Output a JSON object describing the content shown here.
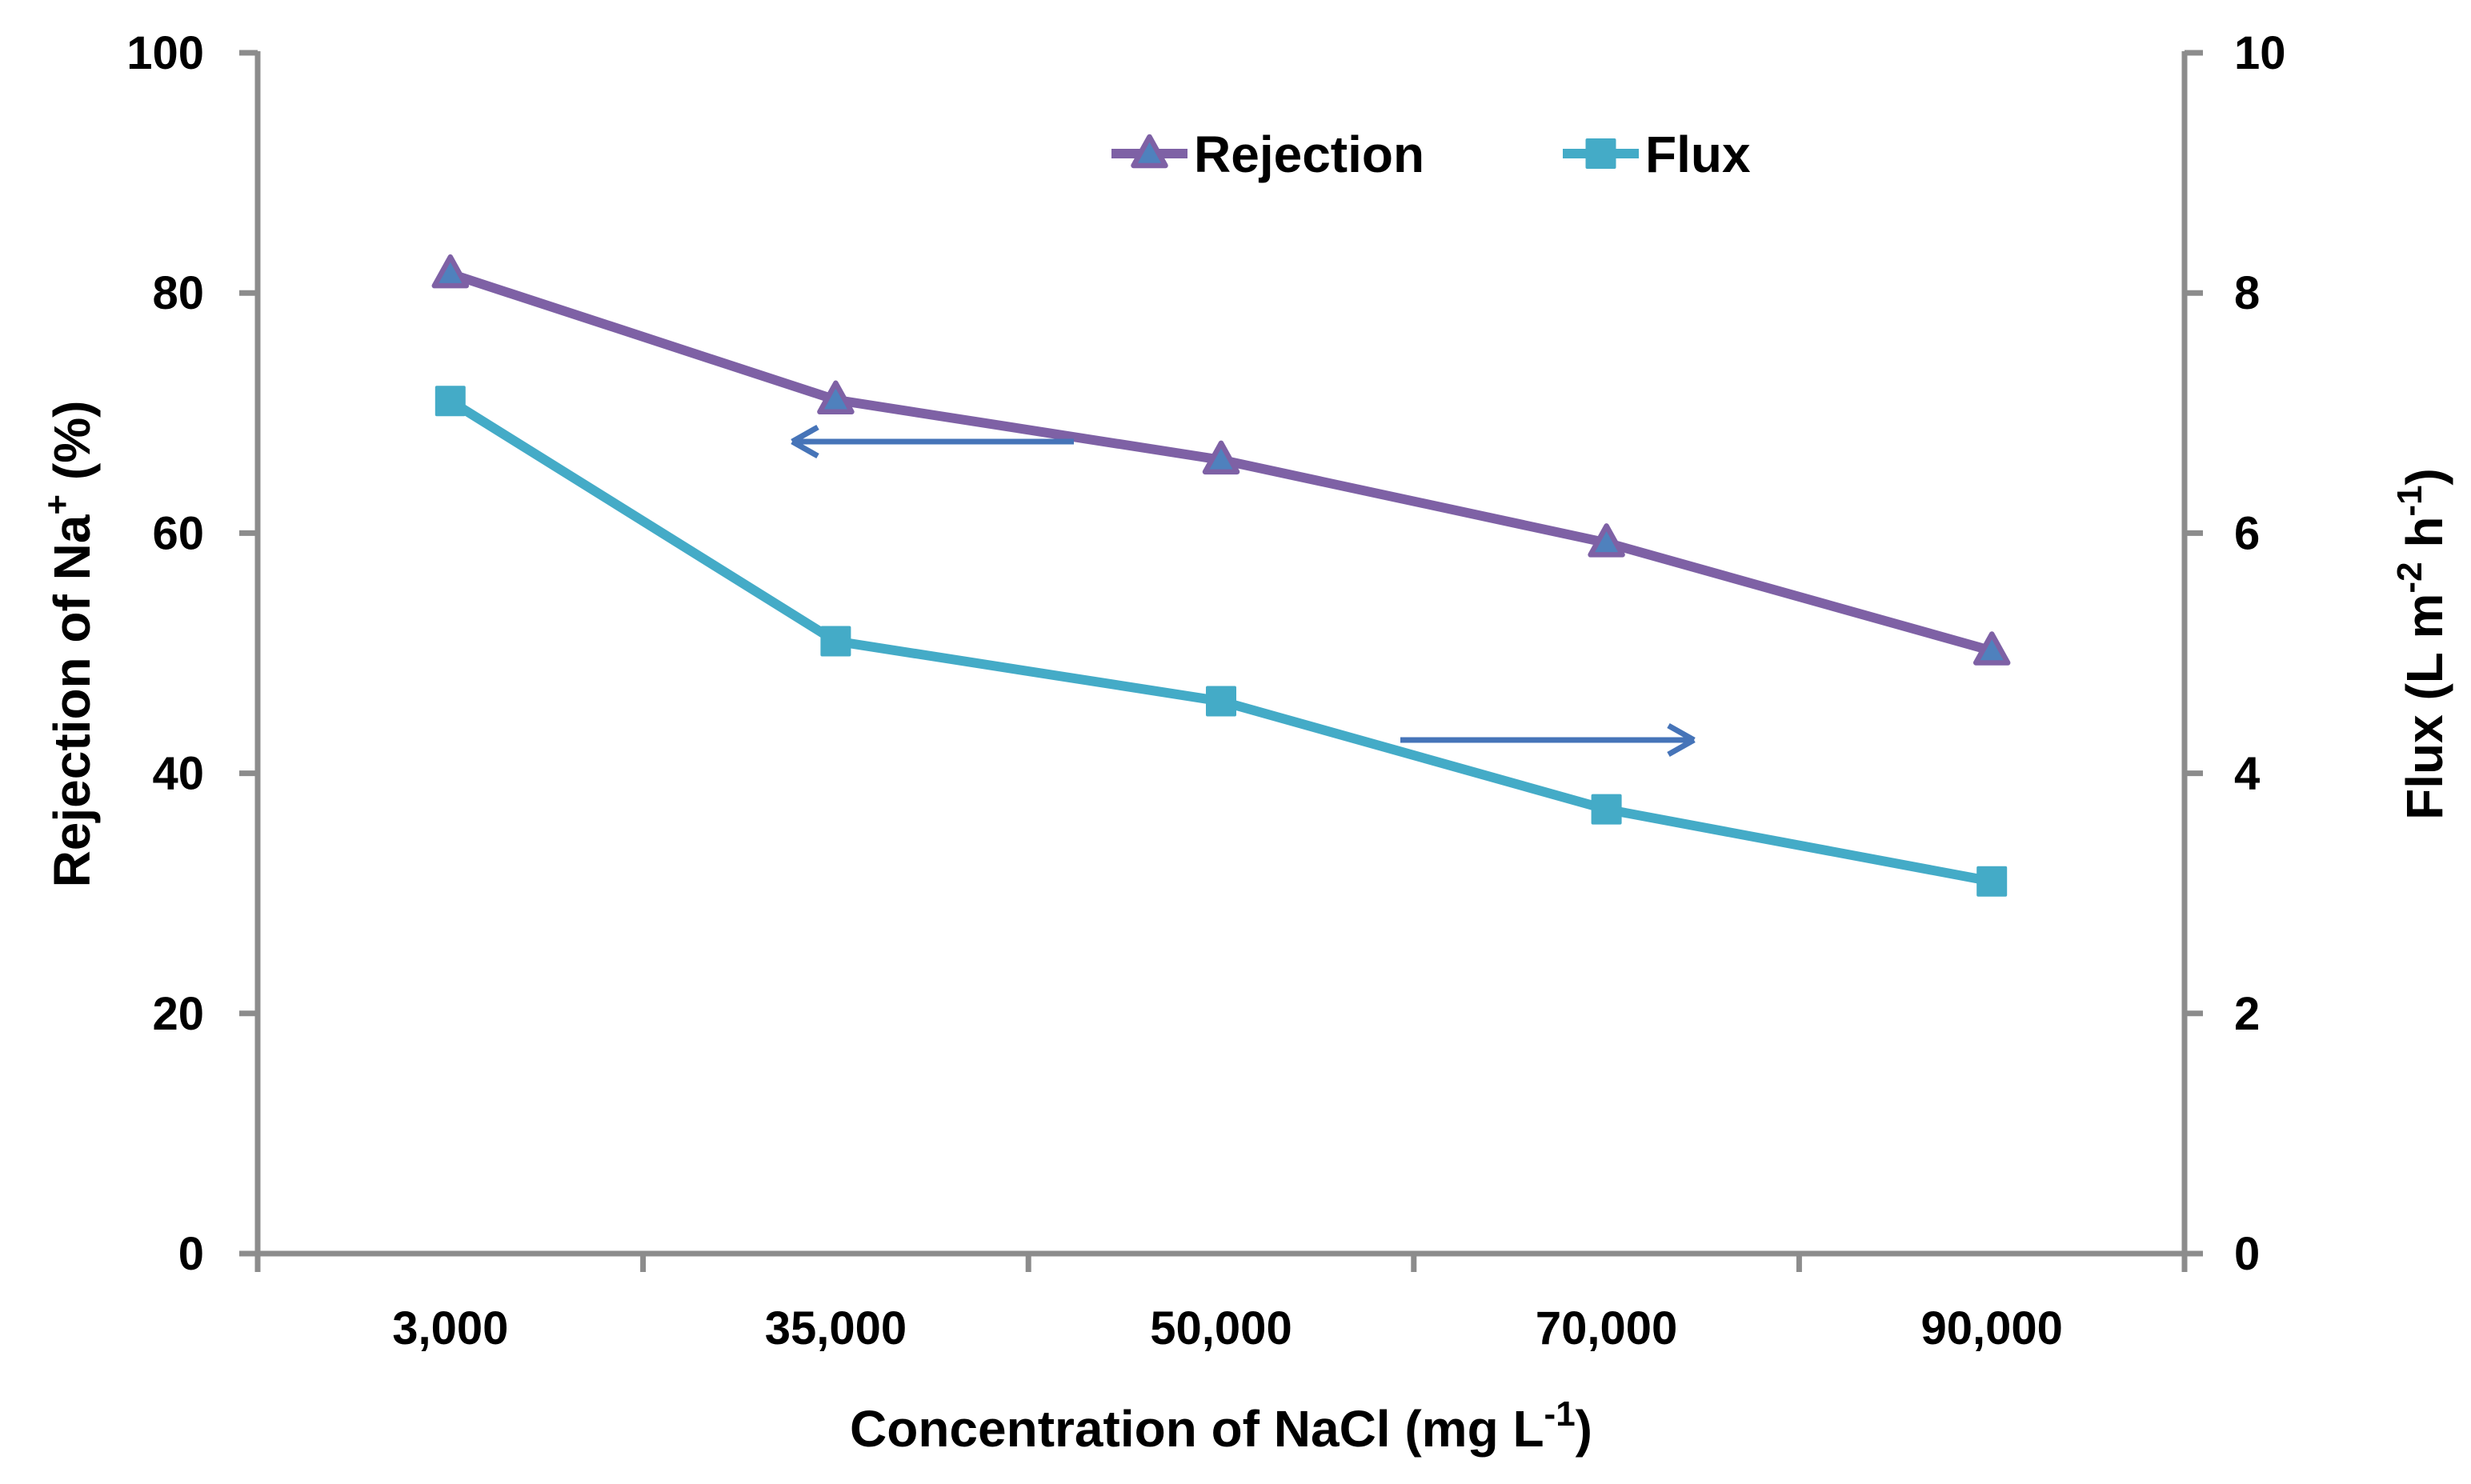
{
  "page": {
    "background": "#FFFFFF"
  },
  "chart_data": {
    "type": "line",
    "title": "",
    "grid": false,
    "legend": {
      "position": "top-center",
      "items": [
        "Rejection",
        "Flux"
      ]
    },
    "categories": [
      "3,000",
      "35,000",
      "50,000",
      "70,000",
      "90,000"
    ],
    "x_axis": {
      "title_parts": [
        {
          "t": "Concentration of NaCl (mg L"
        },
        {
          "t": "-1",
          "sup": true
        },
        {
          "t": ")"
        }
      ]
    },
    "left_axis": {
      "title_parts": [
        {
          "t": "Rejection of Na"
        },
        {
          "t": "+",
          "sup": true
        },
        {
          "t": " (%)"
        }
      ],
      "ticks": [
        "0",
        "20",
        "40",
        "60",
        "80",
        "100"
      ],
      "range": [
        0,
        100
      ]
    },
    "right_axis": {
      "title_parts": [
        {
          "t": "Flux (L m"
        },
        {
          "t": "-2",
          "sup": true
        },
        {
          "t": " h"
        },
        {
          "t": "-1",
          "sup": true
        },
        {
          "t": ")"
        }
      ],
      "ticks": [
        "0",
        "2",
        "4",
        "6",
        "8",
        "10"
      ],
      "range": [
        0,
        10
      ]
    },
    "series": [
      {
        "name": "Rejection",
        "axis": "left",
        "marker": "triangle",
        "line_color": "#7E61A5",
        "marker_fill": "#4F81BD",
        "marker_stroke": "#7E61A5",
        "values": [
          81.6,
          71.1,
          66.1,
          59.2,
          50.2
        ]
      },
      {
        "name": "Flux",
        "axis": "right",
        "marker": "square",
        "line_color": "#44ABC7",
        "marker_fill": "#44ABC7",
        "marker_stroke": "#44ABC7",
        "values": [
          7.1,
          5.1,
          4.6,
          3.7,
          3.1
        ]
      }
    ],
    "annotations": [
      {
        "name": "left-arrow",
        "meaning": "Rejection reads on left axis",
        "x1": 1342,
        "y1": 552,
        "x2": 990,
        "y2": 552,
        "color": "#4674B8"
      },
      {
        "name": "right-arrow",
        "meaning": "Flux reads on right axis",
        "x1": 1750,
        "y1": 925,
        "x2": 2117,
        "y2": 925,
        "color": "#4674B8"
      }
    ],
    "axis_color": "#8C8C8C",
    "text_color": "#000000"
  }
}
